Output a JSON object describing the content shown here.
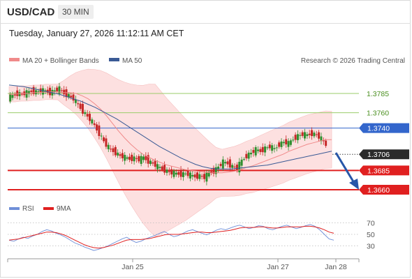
{
  "header": {
    "symbol": "USD/CAD",
    "timeframe": "30 MIN"
  },
  "timestamp": "Tuesday, January 27, 2026 11:12:11 AM CET",
  "legend": {
    "ma20": "MA 20 + Bollinger Bands",
    "ma50": "MA 50",
    "credit": "Research © 2026 Trading Central",
    "rsi": "RSI",
    "ma9": "9MA"
  },
  "colors": {
    "ma20": "#f08a8a",
    "band_fill": "#fde0e0",
    "ma50": "#3a5a95",
    "up": "#2f8f2f",
    "down": "#c62828",
    "resistance": "#9acd6a",
    "pivot": "#3366cc",
    "support": "#e02020",
    "rsi": "#6f8fd8",
    "rsi_ma": "#e02020",
    "arrow": "#2756a8"
  },
  "chart_data": {
    "type": "candlestick",
    "x_labels": [
      "Jan 25",
      "Jan 27",
      "Jan 28"
    ],
    "current_price": "1.3706",
    "price_range": [
      1.3652,
      1.3797
    ],
    "levels": [
      {
        "label": "1.3785",
        "value": 1.3785,
        "kind": "resistance"
      },
      {
        "label": "1.3760",
        "value": 1.376,
        "kind": "resistance"
      },
      {
        "label": "1.3740",
        "value": 1.374,
        "kind": "pivot"
      },
      {
        "label": "1.3685",
        "value": 1.3685,
        "kind": "support"
      },
      {
        "label": "1.3660",
        "value": 1.366,
        "kind": "support"
      }
    ],
    "price_path": [
      1.378,
      1.3782,
      1.3785,
      1.3784,
      1.3786,
      1.3788,
      1.3787,
      1.3789,
      1.3788,
      1.3786,
      1.3789,
      1.3791,
      1.3785,
      1.3782,
      1.3778,
      1.377,
      1.3762,
      1.3755,
      1.3748,
      1.3738,
      1.3728,
      1.3718,
      1.3712,
      1.3708,
      1.3704,
      1.3702,
      1.37,
      1.3701,
      1.3699,
      1.3702,
      1.3697,
      1.3694,
      1.369,
      1.3687,
      1.3684,
      1.3682,
      1.3681,
      1.368,
      1.3681,
      1.3679,
      1.3677,
      1.3678,
      1.3676,
      1.3682,
      1.3684,
      1.369,
      1.3696,
      1.3694,
      1.369,
      1.3688,
      1.3698,
      1.3704,
      1.3708,
      1.3712,
      1.371,
      1.3714,
      1.3716,
      1.3713,
      1.3719,
      1.3722,
      1.372,
      1.3726,
      1.373,
      1.3732,
      1.3731,
      1.3733,
      1.3731,
      1.3726,
      1.3718
    ],
    "ma20_path": [
      1.3784,
      1.3784,
      1.3785,
      1.3785,
      1.3786,
      1.3786,
      1.3787,
      1.3787,
      1.3787,
      1.3786,
      1.3786,
      1.3785,
      1.3782,
      1.3778,
      1.3772,
      1.3765,
      1.3756,
      1.3746,
      1.3736,
      1.3727,
      1.3719,
      1.3712,
      1.3706,
      1.3702,
      1.3698,
      1.3695,
      1.3692,
      1.369,
      1.3688,
      1.3686,
      1.3685,
      1.3684,
      1.3683,
      1.3682,
      1.3682,
      1.3682,
      1.3683,
      1.3684,
      1.3686,
      1.3689,
      1.3691,
      1.3694,
      1.3697,
      1.37,
      1.3703,
      1.3706,
      1.371,
      1.3713,
      1.3716,
      1.3719,
      1.3721,
      1.3723,
      1.3725,
      1.3725
    ],
    "ma50_path": [
      1.3796,
      1.3795,
      1.3794,
      1.3792,
      1.379,
      1.3788,
      1.3786,
      1.3784,
      1.3781,
      1.3778,
      1.3775,
      1.3771,
      1.3767,
      1.3762,
      1.3757,
      1.3752,
      1.3746,
      1.374,
      1.3734,
      1.3728,
      1.3722,
      1.3716,
      1.3711,
      1.3706,
      1.3701,
      1.3697,
      1.3693,
      1.369,
      1.3688,
      1.3687,
      1.3687,
      1.3687,
      1.3688,
      1.3689,
      1.369,
      1.3691,
      1.3692,
      1.3694,
      1.3696,
      1.3698,
      1.37,
      1.3702,
      1.3704,
      1.3706,
      1.3708,
      1.371
    ],
    "rsi": {
      "ticks": [
        "70",
        "50",
        "30"
      ],
      "values": [
        40,
        38,
        42,
        45,
        43,
        47,
        50,
        55,
        58,
        56,
        52,
        49,
        45,
        40,
        35,
        32,
        28,
        25,
        22,
        24,
        27,
        30,
        34,
        38,
        42,
        45,
        40,
        36,
        38,
        42,
        45,
        48,
        52,
        55,
        50,
        46,
        48,
        52,
        56,
        58,
        55,
        52,
        49,
        53,
        57,
        60,
        58,
        61,
        64,
        66,
        63,
        60,
        62,
        65,
        64,
        60,
        58,
        61,
        64,
        66,
        63,
        60,
        62,
        65,
        67,
        64,
        58,
        50,
        42,
        40
      ],
      "ma9": [
        40,
        41,
        42,
        44,
        46,
        48,
        50,
        52,
        54,
        54,
        53,
        51,
        48,
        44,
        40,
        36,
        32,
        29,
        27,
        26,
        27,
        29,
        31,
        34,
        37,
        40,
        41,
        41,
        41,
        42,
        43,
        45,
        47,
        49,
        50,
        50,
        50,
        51,
        52,
        53,
        54,
        54,
        53,
        53,
        54,
        55,
        56,
        57,
        59,
        61,
        62,
        62,
        62,
        63,
        63,
        62,
        61,
        61,
        62,
        63,
        63,
        63,
        63,
        64,
        64,
        63,
        61,
        58,
        54,
        52
      ]
    }
  }
}
